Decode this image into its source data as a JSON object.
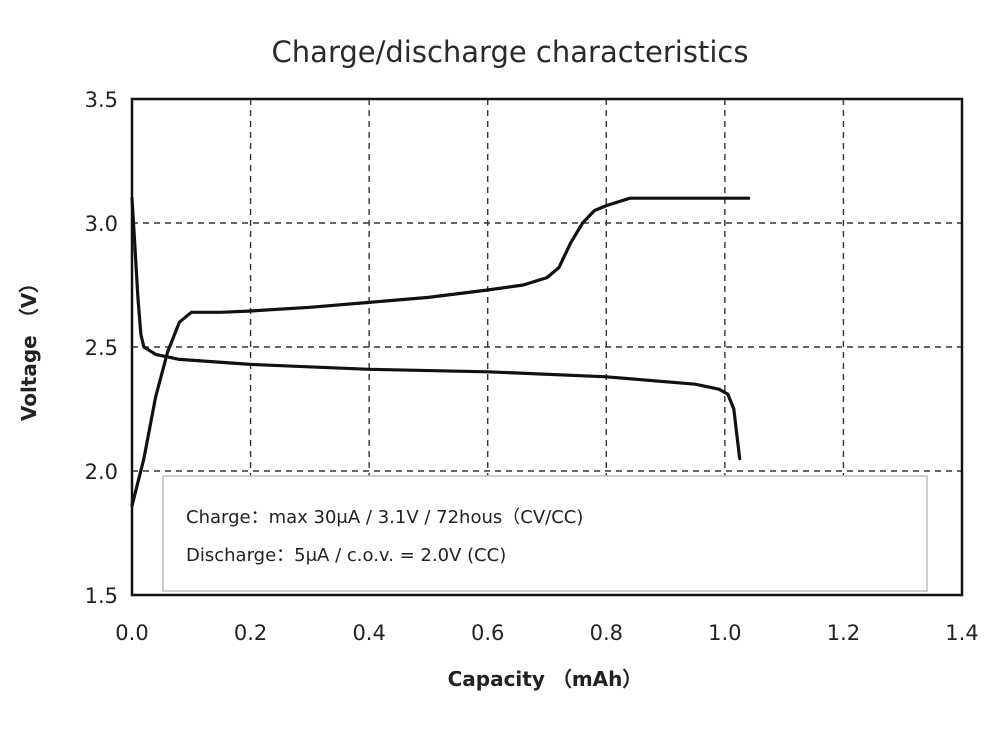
{
  "chart_data": {
    "type": "line",
    "title": "Charge/discharge characteristics",
    "xlabel": "Capacity （mAh）",
    "ylabel": "Voltage （V）",
    "xlim": [
      0.0,
      1.4
    ],
    "ylim": [
      1.5,
      3.5
    ],
    "x_ticks": [
      "0.0",
      "0.2",
      "0.4",
      "0.6",
      "0.8",
      "1.0",
      "1.2",
      "1.4"
    ],
    "y_ticks": [
      "1.5",
      "2.0",
      "2.5",
      "3.0",
      "3.5"
    ],
    "grid": true,
    "legend_position": "bottom",
    "annotations": [
      "Charge：max 30μA / 3.1V / 72hous（CV/CC)",
      "Discharge：5μA / c.o.v. = 2.0V (CC)"
    ],
    "series": [
      {
        "points": [
          [
            0.0,
            1.86
          ],
          [
            0.02,
            2.05
          ],
          [
            0.04,
            2.3
          ],
          [
            0.06,
            2.48
          ],
          [
            0.08,
            2.6
          ],
          [
            0.1,
            2.64
          ],
          [
            0.15,
            2.64
          ],
          [
            0.2,
            2.645
          ],
          [
            0.3,
            2.66
          ],
          [
            0.4,
            2.68
          ],
          [
            0.5,
            2.7
          ],
          [
            0.6,
            2.73
          ],
          [
            0.66,
            2.75
          ],
          [
            0.7,
            2.78
          ],
          [
            0.72,
            2.82
          ],
          [
            0.74,
            2.92
          ],
          [
            0.76,
            3.0
          ],
          [
            0.78,
            3.05
          ],
          [
            0.8,
            3.07
          ],
          [
            0.84,
            3.1
          ],
          [
            0.9,
            3.1
          ],
          [
            1.0,
            3.1
          ],
          [
            1.04,
            3.1
          ]
        ]
      },
      {
        "points": [
          [
            0.0,
            3.1
          ],
          [
            0.005,
            2.9
          ],
          [
            0.01,
            2.7
          ],
          [
            0.015,
            2.55
          ],
          [
            0.02,
            2.5
          ],
          [
            0.04,
            2.47
          ],
          [
            0.08,
            2.45
          ],
          [
            0.2,
            2.43
          ],
          [
            0.4,
            2.41
          ],
          [
            0.6,
            2.4
          ],
          [
            0.8,
            2.38
          ],
          [
            0.95,
            2.35
          ],
          [
            0.99,
            2.33
          ],
          [
            1.005,
            2.31
          ],
          [
            1.015,
            2.25
          ],
          [
            1.02,
            2.15
          ],
          [
            1.025,
            2.05
          ]
        ]
      }
    ],
    "line_color": "#111111",
    "grid_color": "#333333"
  }
}
